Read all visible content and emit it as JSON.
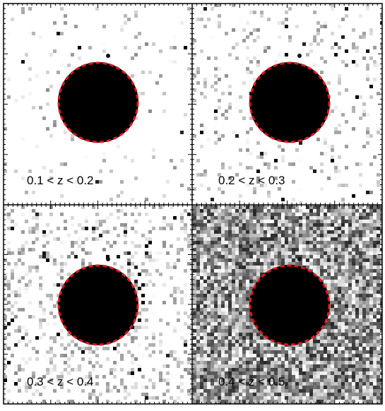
{
  "figure": {
    "panels": [
      {
        "label": "0.1 < z < 0.2",
        "noise_level": 0.05
      },
      {
        "label": "0.2 < z < 0.3",
        "noise_level": 0.12
      },
      {
        "label": "0.3 < z < 0.4",
        "noise_level": 0.25
      },
      {
        "label": "0.4 < z < 0.5",
        "noise_level": 0.85
      }
    ],
    "colors": {
      "background": "#ffffff",
      "frame": "#000000",
      "disk": "#000000",
      "dashed_circle": "#e8141c"
    }
  }
}
